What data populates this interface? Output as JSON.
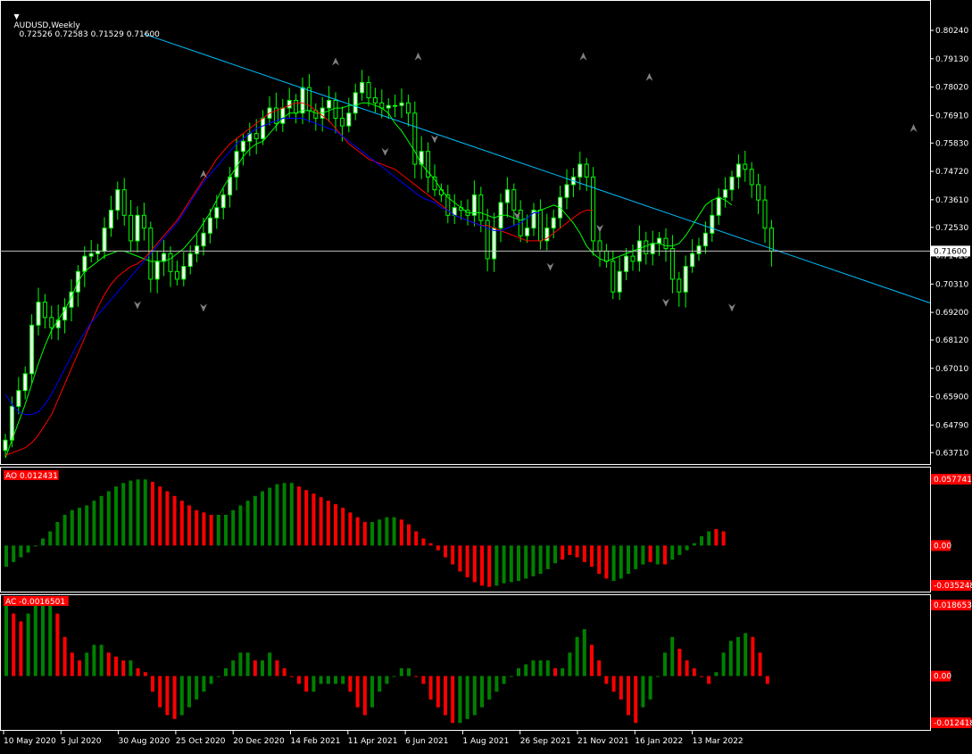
{
  "colors": {
    "background": "#000000",
    "grid_frame": "#ffffff",
    "candle_bull": "#ffffff",
    "candle_bear": "#000000",
    "wick": "#00ff00",
    "sma_fast": "#00ff00",
    "sma_mid": "#ff0000",
    "sma_slow": "#0000ff",
    "trendline": "#00bfff",
    "ao_up": "#008000",
    "ao_down": "#ff0000",
    "fractal": "#808080",
    "price_tag": "#ffffff"
  },
  "header": {
    "title": "AUDUSD,Weekly",
    "ohlc": "0.72526 0.72583 0.71529 0.71600",
    "menu_icon": "triangle-down-icon"
  },
  "price_axis": {
    "ticks": [
      "0.80240",
      "0.79130",
      "0.78020",
      "0.76910",
      "0.75830",
      "0.74720",
      "0.73610",
      "0.72530",
      "0.71420",
      "0.70310",
      "0.69200",
      "0.68120",
      "0.67010",
      "0.65900",
      "0.64790",
      "0.63710"
    ],
    "current_price": "0.71600"
  },
  "ao_panel": {
    "label": "AO 0.012431",
    "ticks": [
      "0.057741",
      "0.00",
      "-0.035248"
    ]
  },
  "ac_panel": {
    "label": "AC -0.0016501",
    "ticks": [
      "0.0186533",
      "0.00",
      "-0.0124184"
    ]
  },
  "time_axis": {
    "labels": [
      "10 May 2020",
      "5 Jul 2020",
      "30 Aug 2020",
      "25 Oct 2020",
      "20 Dec 2020",
      "14 Feb 2021",
      "11 Apr 2021",
      "6 Jun 2021",
      "1 Aug 2021",
      "26 Sep 2021",
      "21 Nov 2021",
      "16 Jan 2022",
      "13 Mar 2022"
    ]
  },
  "chart_data": [
    {
      "type": "candlestick",
      "title": "AUDUSD,Weekly",
      "ylim": [
        0.6344,
        0.808
      ],
      "current_price": 0.716,
      "series": [
        {
          "name": "AUDUSD",
          "close": [
            0.642,
            0.6552,
            0.6614,
            0.668,
            0.687,
            0.696,
            0.69,
            0.686,
            0.689,
            0.694,
            0.7,
            0.708,
            0.714,
            0.715,
            0.716,
            0.725,
            0.732,
            0.74,
            0.73,
            0.72,
            0.73,
            0.725,
            0.705,
            0.712,
            0.715,
            0.708,
            0.705,
            0.71,
            0.715,
            0.718,
            0.723,
            0.729,
            0.733,
            0.738,
            0.745,
            0.755,
            0.759,
            0.762,
            0.76,
            0.768,
            0.772,
            0.766,
            0.772,
            0.775,
            0.77,
            0.78,
            0.771,
            0.768,
            0.772,
            0.775,
            0.768,
            0.765,
            0.77,
            0.778,
            0.782,
            0.776,
            0.774,
            0.772,
            0.773,
            0.773,
            0.774,
            0.77,
            0.75,
            0.755,
            0.745,
            0.74,
            0.738,
            0.73,
            0.733,
            0.732,
            0.73,
            0.738,
            0.728,
            0.713,
            0.725,
            0.735,
            0.74,
            0.732,
            0.722,
            0.725,
            0.732,
            0.72,
            0.725,
            0.729,
            0.737,
            0.742,
            0.745,
            0.75,
            0.745,
            0.72,
            0.716,
            0.712,
            0.7,
            0.708,
            0.714,
            0.712,
            0.72,
            0.715,
            0.719,
            0.721,
            0.717,
            0.705,
            0.7,
            0.71,
            0.715,
            0.718,
            0.723,
            0.73,
            0.737,
            0.74,
            0.745,
            0.75,
            0.748,
            0.742,
            0.736,
            0.725,
            0.716
          ]
        },
        {
          "name": "SMA fast",
          "values": [
            0.635,
            0.642,
            0.649,
            0.656,
            0.664,
            0.672,
            0.679,
            0.685,
            0.689,
            0.693,
            0.698,
            0.704,
            0.708,
            0.71,
            0.712,
            0.714,
            0.715,
            0.716,
            0.716,
            0.715,
            0.714,
            0.713,
            0.712,
            0.712,
            0.712,
            0.713,
            0.715,
            0.717,
            0.72,
            0.723,
            0.727,
            0.731,
            0.736,
            0.741,
            0.745,
            0.749,
            0.753,
            0.756,
            0.758,
            0.759,
            0.762,
            0.765,
            0.768,
            0.77,
            0.77,
            0.771,
            0.771,
            0.77,
            0.77,
            0.771,
            0.772,
            0.772,
            0.773,
            0.773,
            0.774,
            0.774,
            0.773,
            0.772,
            0.77,
            0.766,
            0.763,
            0.759,
            0.755,
            0.75,
            0.747,
            0.744,
            0.74,
            0.737,
            0.735,
            0.733,
            0.731,
            0.731,
            0.731,
            0.73,
            0.729,
            0.73,
            0.73,
            0.729,
            0.728,
            0.729,
            0.731,
            0.732,
            0.733,
            0.734,
            0.733,
            0.73,
            0.727,
            0.723,
            0.718,
            0.715,
            0.713,
            0.712,
            0.713,
            0.714,
            0.715,
            0.716,
            0.717,
            0.718,
            0.719,
            0.719,
            0.718,
            0.718,
            0.719,
            0.722,
            0.726,
            0.73,
            0.734,
            0.736,
            0.737,
            0.736,
            0.734
          ]
        },
        {
          "name": "SMA mid",
          "values": [
            0.636,
            0.637,
            0.638,
            0.639,
            0.641,
            0.644,
            0.648,
            0.652,
            0.658,
            0.664,
            0.67,
            0.676,
            0.682,
            0.688,
            0.694,
            0.699,
            0.703,
            0.706,
            0.708,
            0.71,
            0.711,
            0.713,
            0.716,
            0.719,
            0.722,
            0.725,
            0.728,
            0.732,
            0.736,
            0.74,
            0.744,
            0.748,
            0.752,
            0.755,
            0.758,
            0.76,
            0.762,
            0.764,
            0.766,
            0.768,
            0.77,
            0.771,
            0.772,
            0.773,
            0.774,
            0.774,
            0.773,
            0.771,
            0.769,
            0.767,
            0.764,
            0.761,
            0.758,
            0.756,
            0.754,
            0.752,
            0.751,
            0.75,
            0.749,
            0.748,
            0.746,
            0.744,
            0.742,
            0.74,
            0.738,
            0.736,
            0.734,
            0.732,
            0.73,
            0.729,
            0.728,
            0.727,
            0.726,
            0.726,
            0.725,
            0.724,
            0.723,
            0.722,
            0.721,
            0.72,
            0.72,
            0.72,
            0.721,
            0.723,
            0.725,
            0.727,
            0.729,
            0.731,
            0.732,
            0.732
          ]
        },
        {
          "name": "SMA slow",
          "values": [
            0.66,
            0.656,
            0.653,
            0.652,
            0.652,
            0.653,
            0.656,
            0.66,
            0.665,
            0.67,
            0.675,
            0.68,
            0.684,
            0.688,
            0.691,
            0.694,
            0.697,
            0.7,
            0.703,
            0.706,
            0.709,
            0.712,
            0.715,
            0.718,
            0.721,
            0.724,
            0.727,
            0.731,
            0.735,
            0.739,
            0.743,
            0.746,
            0.749,
            0.752,
            0.755,
            0.758,
            0.76,
            0.762,
            0.764,
            0.765,
            0.766,
            0.767,
            0.768,
            0.768,
            0.768,
            0.768,
            0.767,
            0.766,
            0.765,
            0.764,
            0.763,
            0.761,
            0.759,
            0.757,
            0.755,
            0.753,
            0.751,
            0.749,
            0.747,
            0.745,
            0.743,
            0.741,
            0.739,
            0.737,
            0.736,
            0.735,
            0.733,
            0.732,
            0.73,
            0.729,
            0.728,
            0.727,
            0.726,
            0.725,
            0.724,
            0.724,
            0.725,
            0.726,
            0.727,
            0.729,
            0.731,
            0.731
          ]
        }
      ],
      "trendline": {
        "from": [
          21,
          0.801
        ],
        "to": [
          64,
          0.678
        ]
      },
      "fractals_up": [
        [
          12,
          0.746
        ],
        [
          20,
          0.79
        ],
        [
          25,
          0.792
        ],
        [
          35,
          0.792
        ],
        [
          39,
          0.784
        ],
        [
          55,
          0.764
        ],
        [
          63,
          0.733
        ],
        [
          74,
          0.736
        ]
      ],
      "fractals_down": [
        [
          8,
          0.695
        ],
        [
          12,
          0.694
        ],
        [
          23,
          0.755
        ],
        [
          26,
          0.76
        ],
        [
          31,
          0.73
        ],
        [
          33,
          0.71
        ],
        [
          36,
          0.725
        ],
        [
          40,
          0.696
        ],
        [
          44,
          0.694
        ]
      ]
    },
    {
      "type": "bar",
      "title": "AO 0.012431",
      "ylim": [
        -0.035248,
        0.057741
      ],
      "values": [
        -0.018,
        -0.014,
        -0.01,
        -0.006,
        0.0,
        0.006,
        0.012,
        0.02,
        0.026,
        0.03,
        0.032,
        0.034,
        0.038,
        0.042,
        0.046,
        0.05,
        0.053,
        0.055,
        0.056,
        0.056,
        0.054,
        0.05,
        0.046,
        0.042,
        0.038,
        0.034,
        0.03,
        0.028,
        0.026,
        0.026,
        0.026,
        0.03,
        0.034,
        0.038,
        0.042,
        0.046,
        0.049,
        0.052,
        0.053,
        0.053,
        0.05,
        0.047,
        0.044,
        0.041,
        0.038,
        0.035,
        0.032,
        0.028,
        0.024,
        0.02,
        0.02,
        0.022,
        0.024,
        0.024,
        0.022,
        0.018,
        0.012,
        0.006,
        0.002,
        -0.004,
        -0.01,
        -0.016,
        -0.022,
        -0.027,
        -0.031,
        -0.034,
        -0.035,
        -0.034,
        -0.032,
        -0.031,
        -0.03,
        -0.028,
        -0.026,
        -0.024,
        -0.02,
        -0.015,
        -0.012,
        -0.008,
        -0.01,
        -0.014,
        -0.018,
        -0.024,
        -0.028,
        -0.03,
        -0.028,
        -0.024,
        -0.02,
        -0.016,
        -0.014,
        -0.016,
        -0.016,
        -0.012,
        -0.008,
        -0.004,
        0.002,
        0.008,
        0.012,
        0.014,
        0.012
      ],
      "colors": [
        "ao_up",
        "ao_up",
        "ao_up",
        "ao_up",
        "ao_up",
        "ao_up",
        "ao_up",
        "ao_up",
        "ao_up",
        "ao_up",
        "ao_up",
        "ao_up",
        "ao_up",
        "ao_up",
        "ao_up",
        "ao_up",
        "ao_up",
        "ao_up",
        "ao_up",
        "ao_up",
        "ao_down",
        "ao_down",
        "ao_down",
        "ao_down",
        "ao_down",
        "ao_down",
        "ao_down",
        "ao_down",
        "ao_down",
        "ao_up",
        "ao_up",
        "ao_up",
        "ao_up",
        "ao_up",
        "ao_up",
        "ao_up",
        "ao_up",
        "ao_up",
        "ao_up",
        "ao_up",
        "ao_down",
        "ao_down",
        "ao_down",
        "ao_down",
        "ao_down",
        "ao_down",
        "ao_down",
        "ao_down",
        "ao_down",
        "ao_down",
        "ao_up",
        "ao_up",
        "ao_up",
        "ao_up",
        "ao_down",
        "ao_down",
        "ao_down",
        "ao_down",
        "ao_down",
        "ao_down",
        "ao_down",
        "ao_down",
        "ao_down",
        "ao_down",
        "ao_down",
        "ao_down",
        "ao_down",
        "ao_up",
        "ao_up",
        "ao_up",
        "ao_up",
        "ao_up",
        "ao_up",
        "ao_up",
        "ao_up",
        "ao_up",
        "ao_down",
        "ao_down",
        "ao_down",
        "ao_down",
        "ao_down",
        "ao_down",
        "ao_down",
        "ao_up",
        "ao_up",
        "ao_up",
        "ao_up",
        "ao_up",
        "ao_down",
        "ao_up",
        "ao_down",
        "ao_up",
        "ao_up",
        "ao_up",
        "ao_up",
        "ao_up",
        "ao_up",
        "ao_down",
        "ao_down"
      ]
    },
    {
      "type": "bar",
      "title": "AC -0.0016501",
      "ylim": [
        -0.0124184,
        0.0186533
      ],
      "values": [
        0.018,
        0.016,
        0.014,
        0.016,
        0.018,
        0.02,
        0.02,
        0.016,
        0.01,
        0.006,
        0.004,
        0.006,
        0.008,
        0.008,
        0.006,
        0.005,
        0.004,
        0.004,
        0.002,
        0.001,
        -0.004,
        -0.008,
        -0.01,
        -0.011,
        -0.01,
        -0.008,
        -0.006,
        -0.004,
        -0.002,
        0.0,
        0.002,
        0.004,
        0.006,
        0.006,
        0.004,
        0.004,
        0.006,
        0.004,
        0.002,
        0.0,
        -0.002,
        -0.004,
        -0.004,
        -0.002,
        -0.002,
        -0.002,
        -0.002,
        -0.004,
        -0.008,
        -0.01,
        -0.008,
        -0.004,
        -0.002,
        0.0,
        0.002,
        0.002,
        0.0,
        -0.002,
        -0.006,
        -0.008,
        -0.01,
        -0.012,
        -0.012,
        -0.011,
        -0.01,
        -0.008,
        -0.006,
        -0.004,
        -0.002,
        0.0,
        0.002,
        0.003,
        0.004,
        0.004,
        0.004,
        0.002,
        0.002,
        0.006,
        0.01,
        0.012,
        0.008,
        0.004,
        -0.002,
        -0.004,
        -0.006,
        -0.01,
        -0.012,
        -0.008,
        -0.006,
        0.0,
        0.006,
        0.01,
        0.007,
        0.004,
        0.002,
        0.0,
        -0.002,
        0.001,
        0.006,
        0.009,
        0.01,
        0.011,
        0.01,
        0.006,
        -0.002
      ]
    }
  ]
}
